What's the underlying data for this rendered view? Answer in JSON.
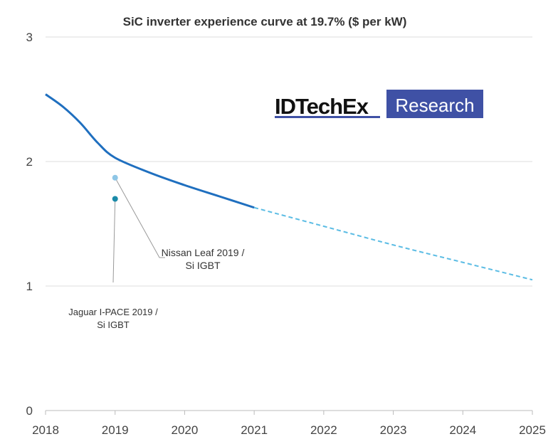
{
  "chart_data": {
    "type": "line",
    "title": "SiC inverter experience curve at 19.7% ($ per kW)",
    "xlabel": "",
    "ylabel": "",
    "xlim": [
      2018,
      2025
    ],
    "ylim": [
      0,
      3
    ],
    "x_ticks": [
      "2018",
      "2019",
      "2020",
      "2021",
      "2022",
      "2023",
      "2024",
      "2025"
    ],
    "y_ticks": [
      "0",
      "1",
      "2",
      "3"
    ],
    "grid": "horizontal",
    "series": [
      {
        "style": "solid",
        "color": "#1f6fbf",
        "x": [
          2018,
          2018.25,
          2018.5,
          2018.75,
          2019,
          2019.5,
          2020,
          2020.5,
          2021
        ],
        "y": [
          2.54,
          2.44,
          2.31,
          2.15,
          2.03,
          1.91,
          1.81,
          1.72,
          1.63
        ]
      },
      {
        "style": "dashed",
        "color": "#5bbce4",
        "x": [
          2021,
          2022,
          2023,
          2024,
          2025
        ],
        "y": [
          1.63,
          1.48,
          1.33,
          1.19,
          1.05
        ]
      }
    ],
    "points": [
      {
        "label": [
          "Nissan Leaf 2019 /",
          "Si IGBT"
        ],
        "x": 2019,
        "y": 1.87,
        "color": "#8ec6e6"
      },
      {
        "label": [
          "Jaguar I-PACE 2019 /",
          "Si IGBT"
        ],
        "x": 2019,
        "y": 1.7,
        "color": "#1a8aa8"
      }
    ]
  },
  "logo": {
    "left": "IDTechEx",
    "right": "Research",
    "color": "#3f51a5"
  }
}
